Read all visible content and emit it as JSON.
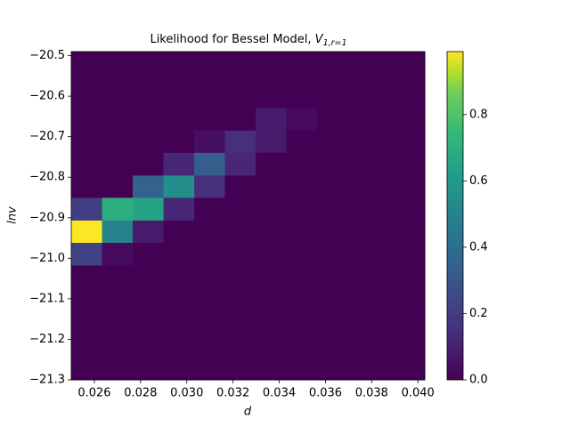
{
  "chart_data": {
    "type": "heatmap",
    "title": {
      "text": "Likelihood for Bessel Model,",
      "symbol": "V",
      "subscript": "1,r=1"
    },
    "xlabel": "d",
    "ylabel": "lnv",
    "colormap": "viridis",
    "x_edges": [
      0.025,
      0.02633,
      0.02766,
      0.02899,
      0.03032,
      0.03165,
      0.03298,
      0.03431,
      0.03564,
      0.03697,
      0.0383,
      0.03963,
      0.0403
    ],
    "y_edges": [
      -21.3,
      -21.239,
      -21.183,
      -21.128,
      -21.072,
      -21.017,
      -20.961,
      -20.906,
      -20.85,
      -20.795,
      -20.739,
      -20.684,
      -20.628,
      -20.573,
      -20.517,
      -20.49
    ],
    "z": [
      [
        0,
        0,
        0,
        0,
        0,
        0,
        0,
        0,
        0,
        0,
        0,
        0
      ],
      [
        0,
        0,
        0,
        0,
        0,
        0,
        0,
        0,
        0,
        0,
        0,
        0
      ],
      [
        0,
        0,
        0,
        0,
        0,
        0,
        0,
        0,
        0,
        0,
        0,
        0
      ],
      [
        0,
        0,
        0,
        0,
        0,
        0,
        0,
        0,
        0,
        0,
        0,
        0
      ],
      [
        0,
        0,
        0,
        0,
        0,
        0,
        0,
        0,
        0,
        0,
        0,
        0
      ],
      [
        0.22,
        0.03,
        0,
        0,
        0,
        0,
        0,
        0,
        0,
        0,
        0,
        0
      ],
      [
        0.99,
        0.5,
        0.08,
        0,
        0,
        0,
        0,
        0,
        0,
        0,
        0,
        0
      ],
      [
        0.2,
        0.7,
        0.65,
        0.12,
        0,
        0,
        0,
        0,
        0,
        0,
        0,
        0
      ],
      [
        0,
        0,
        0.35,
        0.55,
        0.15,
        0,
        0,
        0,
        0,
        0,
        0,
        0
      ],
      [
        0,
        0,
        0,
        0.12,
        0.33,
        0.12,
        0,
        0,
        0,
        0,
        0,
        0
      ],
      [
        0,
        0,
        0,
        0,
        0.04,
        0.15,
        0.08,
        0,
        0,
        0,
        0,
        0
      ],
      [
        0,
        0,
        0,
        0,
        0,
        0,
        0.08,
        0.03,
        0,
        0,
        0,
        0
      ],
      [
        0,
        0,
        0,
        0,
        0,
        0,
        0,
        0,
        0,
        0,
        0,
        0
      ],
      [
        0,
        0,
        0,
        0,
        0,
        0,
        0,
        0,
        0,
        0,
        0,
        0
      ],
      [
        0,
        0,
        0,
        0,
        0,
        0,
        0,
        0,
        0,
        0,
        0,
        0
      ]
    ],
    "xlim": [
      0.025,
      0.0403
    ],
    "xticks": [
      0.026,
      0.028,
      {
        "value": 0.03,
        "label": "0.030"
      },
      0.032,
      0.034,
      0.036,
      0.038,
      {
        "value": 0.04,
        "label": "0.040"
      }
    ],
    "ylim": [
      -21.3,
      -20.49
    ],
    "yticks": [
      {
        "value": -21.3,
        "label": "−21.3"
      },
      {
        "value": -21.2,
        "label": "−21.2"
      },
      {
        "value": -21.1,
        "label": "−21.1"
      },
      {
        "value": -21.0,
        "label": "−21.0"
      },
      {
        "value": -20.9,
        "label": "−20.9"
      },
      {
        "value": -20.8,
        "label": "−20.8"
      },
      {
        "value": -20.7,
        "label": "−20.7"
      },
      {
        "value": -20.6,
        "label": "−20.6"
      },
      {
        "value": -20.5,
        "label": "−20.5"
      }
    ],
    "clim": [
      0,
      0.99
    ],
    "cticks": [
      {
        "value": 0,
        "label": "0.0"
      },
      0.2,
      0.4,
      0.6,
      0.8
    ]
  }
}
